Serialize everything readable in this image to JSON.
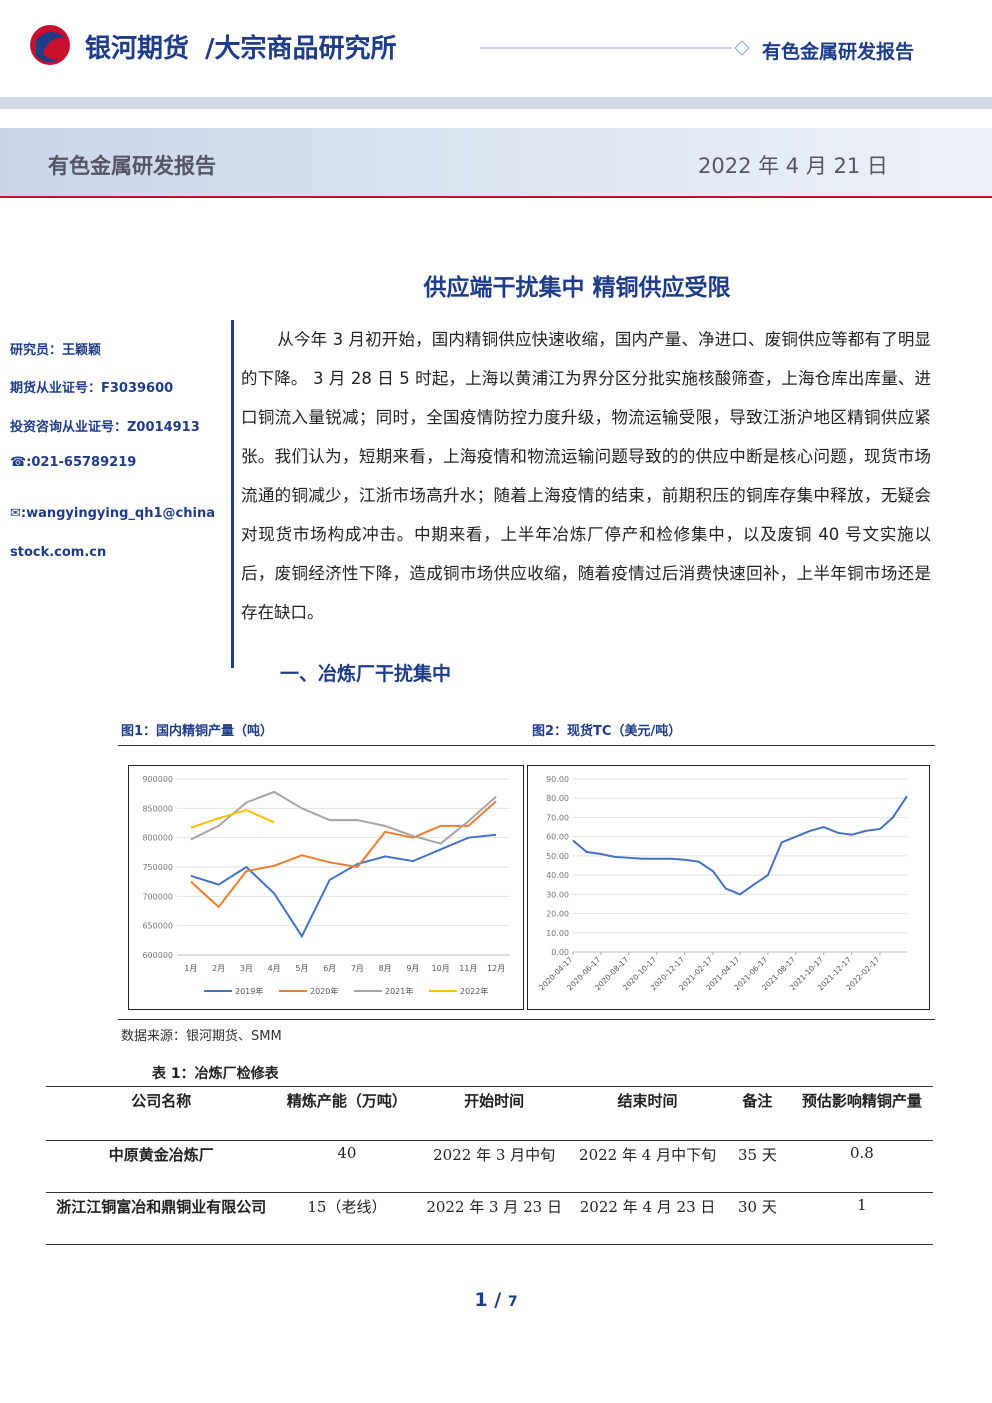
{
  "header": {
    "brand": "银河期货",
    "institute": "/大宗商品研究所",
    "report_type": "有色金属研发报告"
  },
  "banner": {
    "title": "有色金属研发报告",
    "date": "2022 年 4 月 21 日"
  },
  "title": "供应端干扰集中 精铜供应受限",
  "sidebar": [
    "研究员：王颖颖",
    "期货从业证号：F3039600",
    "投资咨询从业证号：Z0014913",
    "☎:021-65789219",
    "✉:wangyingying_qh1@chinastock.com.cn"
  ],
  "paragraph": "从今年 3 月初开始，国内精铜供应快速收缩，国内产量、净进口、废铜供应等都有了明显的下降。 3 月 28 日 5 时起，上海以黄浦江为界分区分批实施核酸筛查，上海仓库出库量、进口铜流入量锐减；同时，全国疫情防控力度升级，物流运输受限，导致江浙沪地区精铜供应紧张。我们认为，短期来看，上海疫情和物流运输问题导致的的供应中断是核心问题，现货市场流通的铜减少，江浙市场高升水；随着上海疫情的结束，前期积压的铜库存集中释放，无疑会对现货市场构成冲击。中期来看，上半年冶炼厂停产和检修集中，以及废铜 40 号文实施以后，废铜经济性下降，造成铜市场供应收缩，随着疫情过后消费快速回补，上半年铜市场还是存在缺口。",
  "section": "一、冶炼厂干扰集中",
  "chart_data": [
    {
      "type": "line",
      "title": "图1：国内精铜产量（吨）",
      "categories": [
        "1月",
        "2月",
        "3月",
        "4月",
        "5月",
        "6月",
        "7月",
        "8月",
        "9月",
        "10月",
        "11月",
        "12月"
      ],
      "ylim": [
        600000,
        900000
      ],
      "yticks": [
        600000,
        650000,
        700000,
        750000,
        800000,
        850000,
        900000
      ],
      "legend": "bottom",
      "series": [
        {
          "name": "2019年",
          "color": "#4472c4",
          "values": [
            735000,
            720000,
            750000,
            705000,
            632000,
            728000,
            755000,
            768000,
            760000,
            780000,
            800000,
            805000
          ]
        },
        {
          "name": "2020年",
          "color": "#ed7d31",
          "values": [
            725000,
            682000,
            743000,
            752000,
            770000,
            758000,
            750000,
            810000,
            800000,
            820000,
            820000,
            862000
          ]
        },
        {
          "name": "2021年",
          "color": "#a5a5a5",
          "values": [
            797000,
            820000,
            860000,
            878000,
            850000,
            830000,
            830000,
            820000,
            803000,
            790000,
            828000,
            870000
          ]
        },
        {
          "name": "2022年",
          "color": "#ffc000",
          "values": [
            817000,
            833000,
            847000,
            826000,
            null,
            null,
            null,
            null,
            null,
            null,
            null,
            null
          ]
        }
      ]
    },
    {
      "type": "line",
      "title": "图2：现货TC（美元/吨）",
      "x": [
        "2020-04-17",
        "2020-05-17",
        "2020-06-17",
        "2020-07-17",
        "2020-08-17",
        "2020-09-17",
        "2020-10-17",
        "2020-11-17",
        "2020-12-17",
        "2021-01-17",
        "2021-02-17",
        "2021-03-17",
        "2021-04-17",
        "2021-05-17",
        "2021-06-17",
        "2021-07-17",
        "2021-08-17",
        "2021-09-17",
        "2021-10-17",
        "2021-11-17",
        "2021-12-17",
        "2022-01-17",
        "2022-02-17",
        "2022-03-17",
        "2022-04-17"
      ],
      "xlim": [
        "2020-04-17",
        "2022-04-17"
      ],
      "xticks": [
        "2020-04-17",
        "2020-06-17",
        "2020-08-17",
        "2020-10-17",
        "2020-12-17",
        "2021-02-17",
        "2021-04-17",
        "2021-06-17",
        "2021-08-17",
        "2021-10-17",
        "2021-12-17",
        "2022-02-17"
      ],
      "ylim": [
        0,
        90
      ],
      "yticks": [
        {
          "value": 0,
          "label": "0.00"
        },
        {
          "value": 10,
          "label": "10.00"
        },
        {
          "value": 20,
          "label": "20.00"
        },
        {
          "value": 30,
          "label": "30.00"
        },
        {
          "value": 40,
          "label": "40.00"
        },
        {
          "value": 50,
          "label": "50.00"
        },
        {
          "value": 60,
          "label": "60.00"
        },
        {
          "value": 70,
          "label": "70.00"
        },
        {
          "value": 80,
          "label": "80.00"
        },
        {
          "value": 90,
          "label": "90.00"
        }
      ],
      "series": [
        {
          "color": "#4472c4",
          "values": [
            58,
            52,
            51,
            49.5,
            49,
            48.5,
            48.5,
            48.5,
            48,
            47,
            42,
            33,
            30,
            35,
            40,
            57,
            60,
            63,
            65,
            62,
            61,
            63,
            64,
            70,
            81
          ]
        }
      ]
    }
  ],
  "source": "数据来源：银河期货、SMM",
  "table": {
    "title": "表 1：冶炼厂检修表",
    "header": [
      "公司名称",
      "精炼产能（万吨）",
      "开始时间",
      "结束时间",
      "备注",
      "预估影响精铜产量"
    ],
    "rows": [
      [
        "中原黄金冶炼厂",
        "40",
        "2022 年 3 月中旬",
        "2022 年 4 月中下旬",
        "35 天",
        "0.8"
      ],
      [
        "浙江江铜富冶和鼎铜业有限公司",
        "15（老线）",
        "2022 年 3 月 23 日",
        "2022 年 4 月 23 日",
        "30 天",
        "1"
      ]
    ]
  },
  "page": {
    "current": "1",
    "total": "7"
  }
}
